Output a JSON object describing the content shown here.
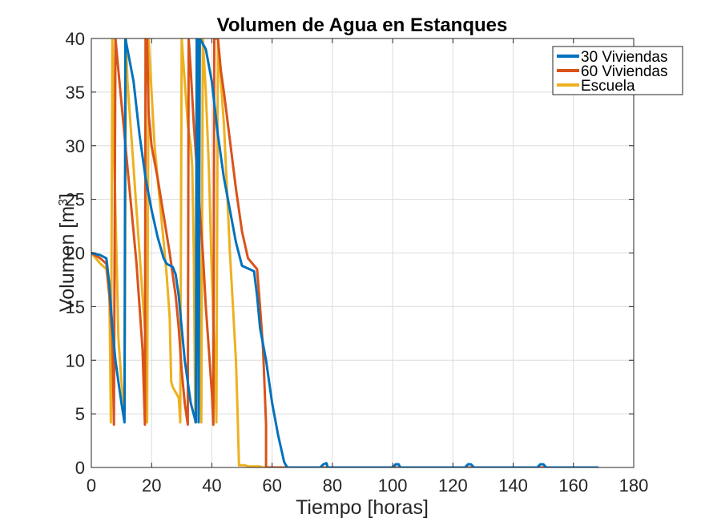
{
  "chart_data": {
    "type": "line",
    "title": "Volumen de Agua en Estanques",
    "xlabel": "Tiempo [horas]",
    "ylabel_main": "Volumen [m",
    "ylabel_sup": "3",
    "ylabel_close": "]",
    "xlim": [
      0,
      180
    ],
    "ylim": [
      0,
      40
    ],
    "xticks": [
      0,
      20,
      40,
      60,
      80,
      100,
      120,
      140,
      160,
      180
    ],
    "yticks": [
      0,
      5,
      10,
      15,
      20,
      25,
      30,
      35,
      40
    ],
    "xtick_labels": [
      "0",
      "20",
      "40",
      "60",
      "80",
      "100",
      "120",
      "140",
      "160",
      "180"
    ],
    "ytick_labels": [
      "0",
      "5",
      "10",
      "15",
      "20",
      "25",
      "30",
      "35",
      "40"
    ],
    "grid": true,
    "legend_position": "top-right",
    "series": [
      {
        "name": "30 Viviendas",
        "color": "#0072BD",
        "points": [
          [
            0,
            20
          ],
          [
            3,
            19.8
          ],
          [
            5,
            19.5
          ],
          [
            6,
            17
          ],
          [
            7,
            13
          ],
          [
            8,
            10
          ],
          [
            9,
            8
          ],
          [
            10,
            6
          ],
          [
            11,
            4.2
          ],
          [
            11.3,
            40
          ],
          [
            12,
            39
          ],
          [
            14,
            36
          ],
          [
            16,
            31
          ],
          [
            18,
            27
          ],
          [
            20,
            24
          ],
          [
            22,
            21.5
          ],
          [
            24,
            19.5
          ],
          [
            25,
            19
          ],
          [
            27,
            18.7
          ],
          [
            28,
            18
          ],
          [
            29,
            16
          ],
          [
            30,
            13
          ],
          [
            31,
            10
          ],
          [
            33,
            6
          ],
          [
            34.7,
            4.2
          ],
          [
            35,
            40
          ],
          [
            35.3,
            40
          ],
          [
            35.6,
            4.2
          ],
          [
            36,
            40
          ],
          [
            38,
            39
          ],
          [
            40,
            36
          ],
          [
            42,
            31
          ],
          [
            44,
            27
          ],
          [
            46,
            24
          ],
          [
            48,
            21
          ],
          [
            50,
            18.8
          ],
          [
            54,
            18.3
          ],
          [
            55,
            16
          ],
          [
            56,
            13
          ],
          [
            58,
            10
          ],
          [
            60,
            6
          ],
          [
            62,
            3
          ],
          [
            64,
            0.5
          ],
          [
            65,
            0
          ],
          [
            76,
            0
          ],
          [
            77,
            0.3
          ],
          [
            78,
            0.4
          ],
          [
            78.5,
            0
          ],
          [
            100,
            0
          ],
          [
            101,
            0.3
          ],
          [
            102,
            0.3
          ],
          [
            102.5,
            0
          ],
          [
            124,
            0
          ],
          [
            125,
            0.3
          ],
          [
            126,
            0.3
          ],
          [
            127,
            0
          ],
          [
            148,
            0
          ],
          [
            149,
            0.3
          ],
          [
            150,
            0.3
          ],
          [
            151,
            0
          ],
          [
            168,
            0
          ]
        ]
      },
      {
        "name": "60 Viviendas",
        "color": "#D95319",
        "points": [
          [
            0,
            20
          ],
          [
            3,
            19.5
          ],
          [
            5,
            19
          ],
          [
            6,
            16
          ],
          [
            7,
            12
          ],
          [
            7.5,
            4
          ],
          [
            8,
            40
          ],
          [
            9,
            37
          ],
          [
            10,
            34
          ],
          [
            11,
            31
          ],
          [
            12,
            28
          ],
          [
            13,
            25
          ],
          [
            14,
            22
          ],
          [
            15,
            19
          ],
          [
            16,
            15
          ],
          [
            17,
            11
          ],
          [
            17.8,
            4
          ],
          [
            18,
            40
          ],
          [
            18.5,
            40
          ],
          [
            19,
            33
          ],
          [
            20,
            30
          ],
          [
            22,
            27
          ],
          [
            24,
            23.5
          ],
          [
            26,
            20
          ],
          [
            28,
            16
          ],
          [
            29,
            13
          ],
          [
            30,
            9
          ],
          [
            31,
            6
          ],
          [
            32,
            4
          ],
          [
            32.3,
            40
          ],
          [
            33,
            37
          ],
          [
            34,
            32
          ],
          [
            35,
            28
          ],
          [
            36,
            24
          ],
          [
            37,
            20
          ],
          [
            38,
            15
          ],
          [
            39,
            11
          ],
          [
            40,
            7
          ],
          [
            40.5,
            4
          ],
          [
            40.8,
            40
          ],
          [
            42,
            40
          ],
          [
            43,
            37
          ],
          [
            44,
            35
          ],
          [
            46,
            30.5
          ],
          [
            48,
            26
          ],
          [
            50,
            22
          ],
          [
            52,
            19.5
          ],
          [
            55,
            18.5
          ],
          [
            56,
            15
          ],
          [
            57,
            11
          ],
          [
            58,
            4
          ],
          [
            58,
            0
          ],
          [
            100,
            0
          ],
          [
            76,
            0
          ],
          [
            168,
            0
          ]
        ]
      },
      {
        "name": "Escuela",
        "color": "#EDB120",
        "points": [
          [
            0,
            20
          ],
          [
            3,
            19
          ],
          [
            5,
            18.5
          ],
          [
            6,
            16
          ],
          [
            6.5,
            4.2
          ],
          [
            7,
            40
          ],
          [
            7.5,
            30
          ],
          [
            8,
            24
          ],
          [
            8.5,
            18
          ],
          [
            9,
            12
          ],
          [
            10,
            8
          ],
          [
            11,
            5
          ],
          [
            11.5,
            40
          ],
          [
            12,
            36
          ],
          [
            13,
            32
          ],
          [
            14,
            28
          ],
          [
            15,
            24
          ],
          [
            16,
            20
          ],
          [
            17,
            16
          ],
          [
            18,
            12
          ],
          [
            18.5,
            4.2
          ],
          [
            19,
            40
          ],
          [
            20,
            35
          ],
          [
            21,
            30
          ],
          [
            22,
            27
          ],
          [
            23,
            24
          ],
          [
            24,
            21
          ],
          [
            25,
            18
          ],
          [
            26,
            14
          ],
          [
            26.5,
            8
          ],
          [
            27,
            7.5
          ],
          [
            28,
            7
          ],
          [
            29,
            6.5
          ],
          [
            29.5,
            4.2
          ],
          [
            30,
            40
          ],
          [
            31,
            36
          ],
          [
            32,
            32
          ],
          [
            33,
            30
          ],
          [
            33.5,
            28
          ],
          [
            34,
            20
          ],
          [
            34.5,
            4.2
          ],
          [
            35,
            40
          ],
          [
            35.5,
            40
          ],
          [
            36,
            12
          ],
          [
            36.5,
            4.2
          ],
          [
            37,
            40
          ],
          [
            38,
            35
          ],
          [
            39,
            28
          ],
          [
            40,
            18
          ],
          [
            41,
            10
          ],
          [
            41.5,
            4.2
          ],
          [
            42,
            40
          ],
          [
            44,
            32
          ],
          [
            45,
            26
          ],
          [
            46,
            20
          ],
          [
            47,
            15
          ],
          [
            48,
            10
          ],
          [
            48.5,
            5.5
          ],
          [
            49,
            0.2
          ],
          [
            51,
            0.2
          ],
          [
            52,
            0.1
          ],
          [
            56,
            0.1
          ],
          [
            57,
            0
          ],
          [
            168,
            0
          ]
        ]
      }
    ]
  }
}
